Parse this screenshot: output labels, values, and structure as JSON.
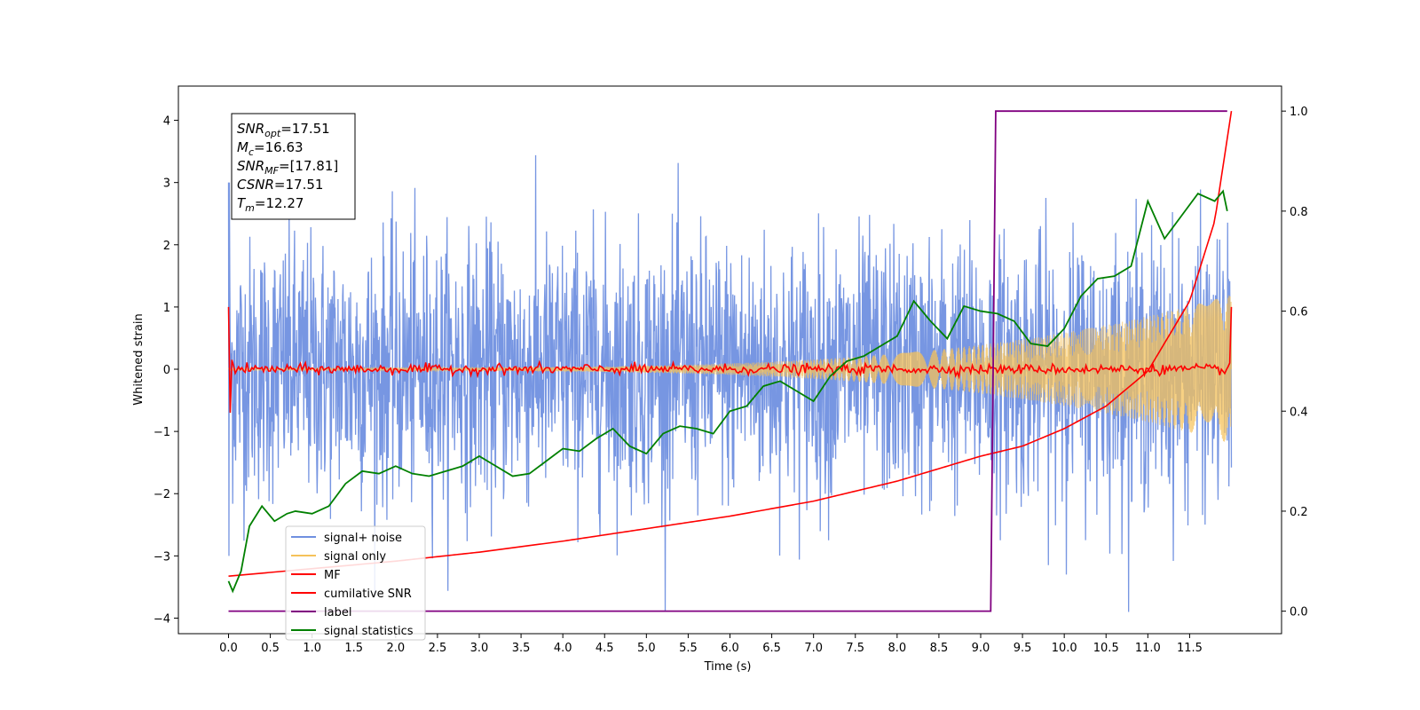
{
  "chart_data": {
    "type": "line",
    "xlabel": "Time (s)",
    "ylabel": "Whitened strain",
    "xlim": [
      -0.6,
      12.6
    ],
    "ylim": [
      -4.25,
      4.55
    ],
    "y2lim": [
      -0.045,
      1.05
    ],
    "x_ticks": [
      "0.0",
      "0.5",
      "1.0",
      "1.5",
      "2.0",
      "2.5",
      "3.0",
      "3.5",
      "4.0",
      "4.5",
      "5.0",
      "5.5",
      "6.0",
      "6.5",
      "7.0",
      "7.5",
      "8.0",
      "8.5",
      "9.0",
      "9.5",
      "10.0",
      "10.5",
      "11.0",
      "11.5"
    ],
    "y_ticks": [
      "4",
      "3",
      "2",
      "1",
      "0",
      "−1",
      "−2",
      "−3",
      "−4"
    ],
    "y2_ticks": [
      "1.0",
      "0.8",
      "0.6",
      "0.4",
      "0.2",
      "0.0"
    ],
    "legend_position": "lower-left",
    "stats_box": {
      "lines": [
        {
          "sym": "SNR",
          "sub": "opt",
          "val": "=17.51"
        },
        {
          "sym": "M",
          "sub": "c",
          "val": "=16.63"
        },
        {
          "sym": "SNR",
          "sub": "MF",
          "val": "=[17.81]"
        },
        {
          "sym": "CSNR",
          "sub": "",
          "val": "=17.51"
        },
        {
          "sym": "T",
          "sub": "m",
          "val": "=12.27"
        }
      ]
    },
    "series": [
      {
        "name": "signal+ noise",
        "color": "#7090e0",
        "axis": "left",
        "style": "noise",
        "x_range": [
          0,
          12.0
        ],
        "envelope_std": 1.05
      },
      {
        "name": "signal only",
        "color": "#f5c25a",
        "axis": "left",
        "style": "chirp",
        "x_range": [
          0,
          12.0
        ],
        "amp_start": 0.02,
        "amp_end": 1.2
      },
      {
        "name": "MF",
        "color": "#ff0000",
        "axis": "left",
        "style": "mf",
        "x_range": [
          0,
          12.0
        ],
        "edge_values": [
          1.0,
          1.0
        ]
      },
      {
        "name": "cumilative SNR",
        "color": "#ff0000",
        "axis": "right",
        "style": "curve",
        "x": [
          0.0,
          1.0,
          2.0,
          3.0,
          4.0,
          5.0,
          6.0,
          7.0,
          8.0,
          9.0,
          9.5,
          10.0,
          10.5,
          11.0,
          11.5,
          11.8,
          12.0
        ],
        "y": [
          0.07,
          0.085,
          0.1,
          0.118,
          0.14,
          0.165,
          0.19,
          0.22,
          0.26,
          0.31,
          0.33,
          0.365,
          0.41,
          0.48,
          0.62,
          0.78,
          1.0
        ]
      },
      {
        "name": "label",
        "color": "#800080",
        "axis": "right",
        "style": "step",
        "x": [
          0.0,
          9.12,
          9.18,
          11.95
        ],
        "y": [
          0.0,
          0.0,
          1.0,
          1.0
        ]
      },
      {
        "name": "signal statistics",
        "color": "#008000",
        "axis": "right",
        "style": "line",
        "x": [
          0.0,
          0.05,
          0.15,
          0.25,
          0.4,
          0.55,
          0.7,
          0.8,
          1.0,
          1.2,
          1.4,
          1.6,
          1.8,
          2.0,
          2.2,
          2.4,
          2.6,
          2.8,
          3.0,
          3.2,
          3.4,
          3.6,
          3.8,
          4.0,
          4.2,
          4.4,
          4.6,
          4.8,
          5.0,
          5.2,
          5.4,
          5.6,
          5.8,
          6.0,
          6.2,
          6.4,
          6.6,
          6.8,
          7.0,
          7.2,
          7.4,
          7.6,
          7.8,
          8.0,
          8.2,
          8.4,
          8.6,
          8.8,
          9.0,
          9.2,
          9.4,
          9.6,
          9.8,
          10.0,
          10.2,
          10.4,
          10.6,
          10.8,
          11.0,
          11.2,
          11.4,
          11.6,
          11.8,
          11.9,
          11.95
        ],
        "y": [
          0.06,
          0.04,
          0.08,
          0.17,
          0.21,
          0.18,
          0.195,
          0.2,
          0.195,
          0.21,
          0.255,
          0.28,
          0.275,
          0.29,
          0.275,
          0.27,
          0.28,
          0.29,
          0.31,
          0.29,
          0.27,
          0.275,
          0.3,
          0.325,
          0.32,
          0.345,
          0.365,
          0.33,
          0.315,
          0.355,
          0.37,
          0.365,
          0.355,
          0.4,
          0.41,
          0.45,
          0.46,
          0.44,
          0.42,
          0.47,
          0.5,
          0.51,
          0.53,
          0.55,
          0.62,
          0.58,
          0.545,
          0.61,
          0.6,
          0.595,
          0.58,
          0.535,
          0.53,
          0.565,
          0.63,
          0.665,
          0.67,
          0.69,
          0.82,
          0.745,
          0.79,
          0.835,
          0.82,
          0.84,
          0.8
        ]
      }
    ]
  }
}
